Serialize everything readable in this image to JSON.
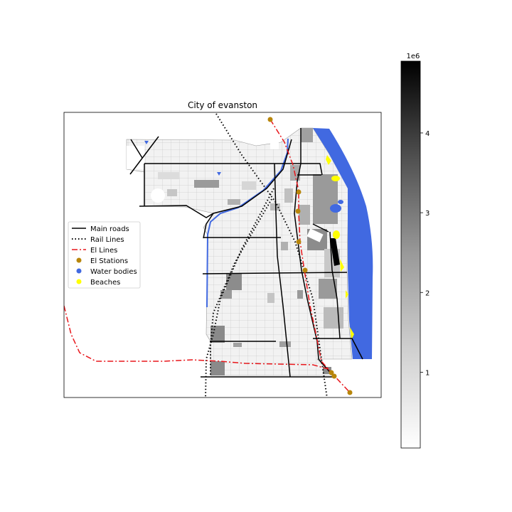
{
  "title": "City of evanston",
  "legend": {
    "items": [
      {
        "label": "Main roads",
        "kind": "line-solid",
        "color": "#000000"
      },
      {
        "label": "Rail Lines",
        "kind": "line-dotted",
        "color": "#000000"
      },
      {
        "label": "El Lines",
        "kind": "line-dashdot",
        "color": "#e8161b"
      },
      {
        "label": "El Stations",
        "kind": "marker",
        "color": "#b8860b"
      },
      {
        "label": "Water bodies",
        "kind": "marker",
        "color": "#4169e1"
      },
      {
        "label": "Beaches",
        "kind": "marker",
        "color": "#ffff00"
      }
    ],
    "placement": "center-left"
  },
  "colorbar": {
    "multiplier": "1e6",
    "ticks": [
      "1",
      "2",
      "3",
      "4"
    ],
    "tick_values": [
      1,
      2,
      3,
      4
    ],
    "range": [
      0.05,
      4.9
    ],
    "colormap": "greys"
  },
  "colors": {
    "water": "#4169e1",
    "beach": "#ffff00",
    "el_line": "#e8161b",
    "station": "#b8860b",
    "road": "#000000"
  }
}
